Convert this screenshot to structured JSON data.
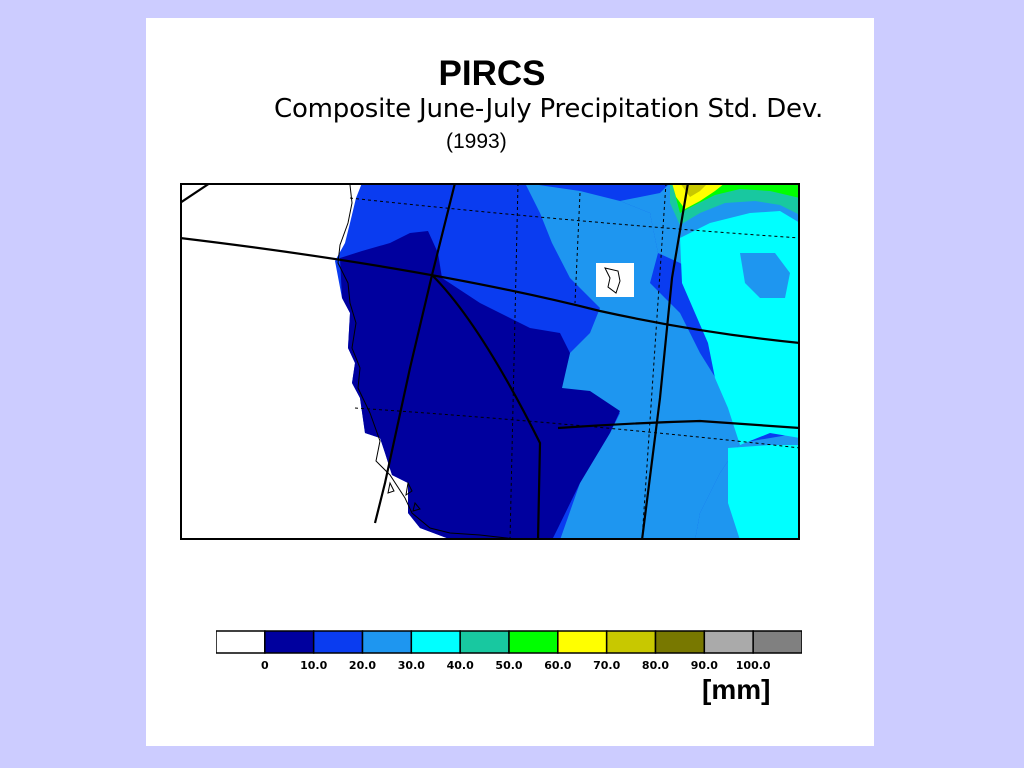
{
  "title": "PIRCS",
  "subtitle": "Composite June-July Precipitation Std. Dev.",
  "year": "(1993)",
  "unit": "[mm]",
  "legend": {
    "colors": [
      "#ffffff",
      "#00009e",
      "#0a3cf0",
      "#1e96f0",
      "#00ffff",
      "#18c8a0",
      "#00ff00",
      "#ffff00",
      "#c8c800",
      "#787800",
      "#aaaaaa",
      "#808080"
    ],
    "tick_labels": [
      "0",
      "10.0",
      "20.0",
      "30.0",
      "40.0",
      "50.0",
      "60.0",
      "70.0",
      "80.0",
      "90.0",
      "100.0"
    ]
  },
  "map": {
    "land_color": "#ffffff",
    "fill_colors": {
      "dark_blue": "#00009e",
      "blue": "#0a3cf0",
      "mid_blue": "#1e96f0",
      "cyan": "#00ffff",
      "teal": "#18c8a0",
      "green": "#00ff00",
      "yellow": "#ffff00",
      "olive": "#c8c800"
    }
  }
}
